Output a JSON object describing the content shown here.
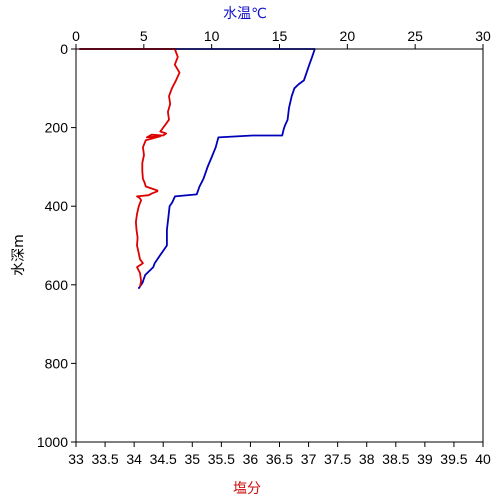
{
  "chart_data": {
    "type": "line",
    "top_axis": {
      "label": "水温℃",
      "color": "#1010cc",
      "range": [
        0,
        30
      ],
      "ticks": [
        "0",
        "5",
        "10",
        "15",
        "20",
        "25",
        "30"
      ]
    },
    "bottom_axis": {
      "label": "塩分",
      "color": "#cc1010",
      "range": [
        33,
        40
      ],
      "ticks": [
        "33",
        "33.5",
        "34",
        "34.5",
        "35",
        "35.5",
        "36",
        "36.5",
        "37",
        "37.5",
        "38",
        "38.5",
        "39",
        "39.5",
        "40"
      ]
    },
    "y_axis": {
      "label": "水深m",
      "range": [
        0,
        1000
      ],
      "inverted": true,
      "ticks": [
        "0",
        "200",
        "400",
        "600",
        "800",
        "1000"
      ]
    },
    "grid": false,
    "series": [
      {
        "axis": "top",
        "color": "#0000bb",
        "x": [
          0.3,
          14.5,
          17.6,
          17.4,
          17.2,
          16.8,
          16.4,
          16.1,
          15.9,
          15.7,
          15.6,
          15.4,
          15.3,
          15.2,
          13.0,
          10.5,
          10.3,
          10.0,
          9.7,
          9.4,
          9.1,
          9.0,
          8.9,
          7.3,
          7.1,
          6.9,
          6.8,
          6.7,
          6.7,
          6.4,
          6.2,
          6.0,
          5.8,
          5.7,
          5.4,
          5.1,
          5.0,
          4.9,
          4.7,
          4.6
        ],
        "y": [
          0,
          0,
          0,
          20,
          40,
          80,
          90,
          100,
          120,
          150,
          180,
          195,
          205,
          220,
          220,
          225,
          250,
          275,
          300,
          330,
          350,
          360,
          370,
          375,
          390,
          400,
          430,
          460,
          500,
          515,
          525,
          535,
          545,
          555,
          565,
          575,
          585,
          595,
          605,
          610
        ]
      },
      {
        "axis": "bottom",
        "color": "#dd0000",
        "x": [
          33.05,
          34.7,
          34.75,
          34.7,
          34.78,
          34.72,
          34.65,
          34.6,
          34.62,
          34.58,
          34.6,
          34.55,
          34.5,
          34.45,
          34.55,
          34.5,
          34.3,
          34.22,
          34.45,
          34.2,
          34.15,
          34.17,
          34.14,
          34.14,
          34.15,
          34.18,
          34.2,
          34.3,
          34.4,
          34.4,
          34.3,
          34.25,
          34.05,
          34.1,
          34.12,
          34.1,
          34.08,
          34.05,
          34.03,
          34.04,
          34.06,
          34.05,
          34.08,
          34.1,
          34.15,
          34.05,
          34.1,
          34.12,
          34.1
        ],
        "y": [
          0,
          0,
          20,
          40,
          60,
          80,
          100,
          120,
          140,
          160,
          180,
          190,
          200,
          210,
          215,
          220,
          218,
          225,
          222,
          232,
          250,
          270,
          290,
          310,
          330,
          340,
          350,
          355,
          360,
          362,
          368,
          372,
          375,
          380,
          385,
          392,
          400,
          420,
          440,
          460,
          480,
          500,
          520,
          535,
          545,
          555,
          570,
          590,
          605
        ]
      }
    ]
  }
}
